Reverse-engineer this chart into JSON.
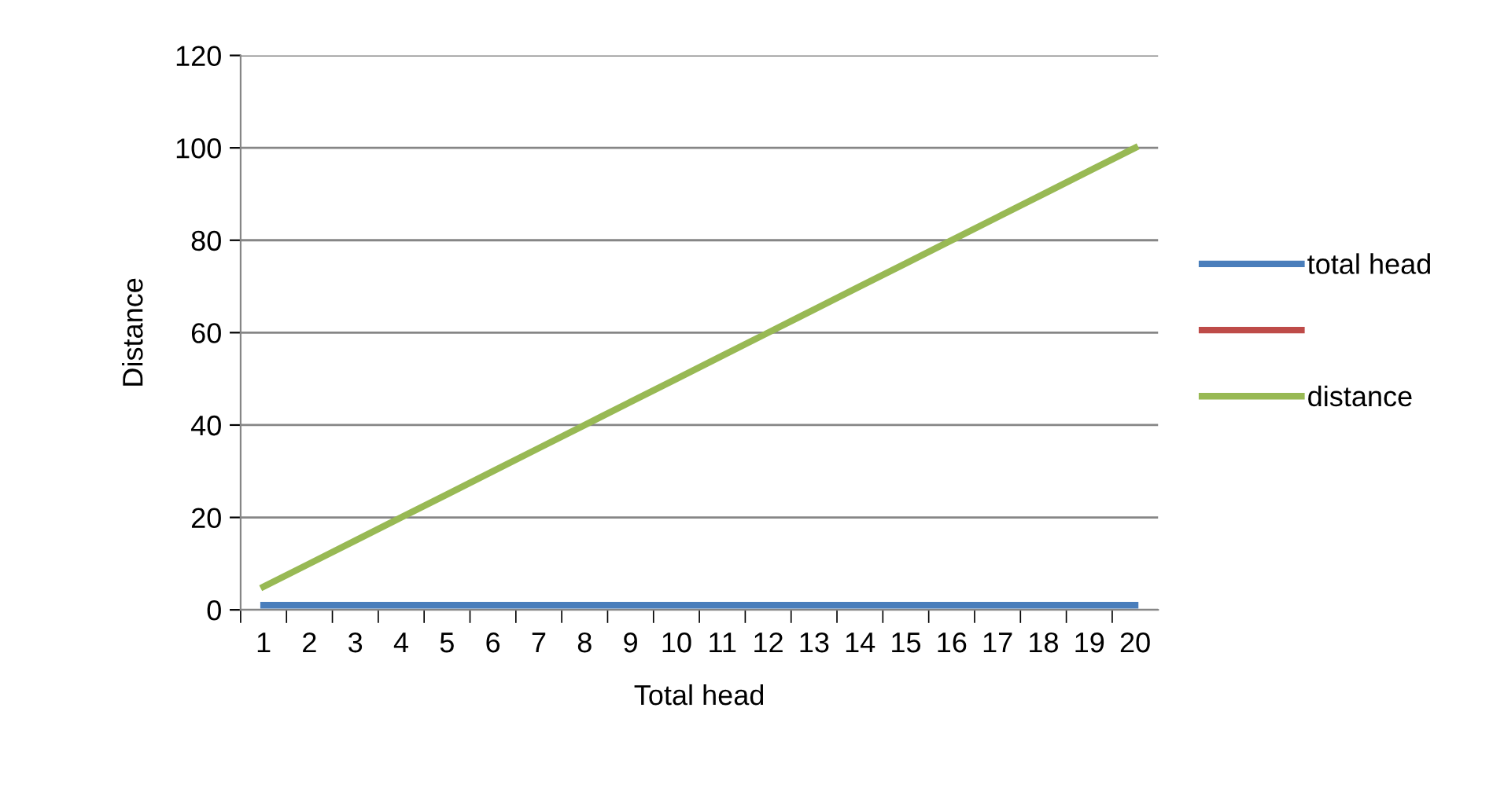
{
  "chart_data": {
    "type": "line",
    "xlabel": "Total head",
    "ylabel": "Distance",
    "categories": [
      "1",
      "2",
      "3",
      "4",
      "5",
      "6",
      "7",
      "8",
      "9",
      "10",
      "11",
      "12",
      "13",
      "14",
      "15",
      "16",
      "17",
      "18",
      "19",
      "20"
    ],
    "series": [
      {
        "name": "total head",
        "color": "#4a7ebb",
        "values": [
          1,
          1,
          1,
          1,
          1,
          1,
          1,
          1,
          1,
          1,
          1,
          1,
          1,
          1,
          1,
          1,
          1,
          1,
          1,
          1
        ]
      },
      {
        "color": "#be4b48",
        "values": [
          null,
          null,
          null,
          null,
          null,
          null,
          null,
          null,
          null,
          null,
          null,
          null,
          null,
          null,
          null,
          null,
          null,
          null,
          null,
          null
        ]
      },
      {
        "name": "distance",
        "color": "#98b954",
        "values": [
          5,
          10,
          15,
          20,
          25,
          30,
          35,
          40,
          45,
          50,
          55,
          60,
          65,
          70,
          75,
          80,
          85,
          90,
          95,
          100
        ]
      }
    ],
    "ylim": [
      0,
      120
    ],
    "yticks": [
      0,
      20,
      40,
      60,
      80,
      100,
      120
    ],
    "grid": "y",
    "legend": "right",
    "marker": "none",
    "line_style": "solid"
  }
}
